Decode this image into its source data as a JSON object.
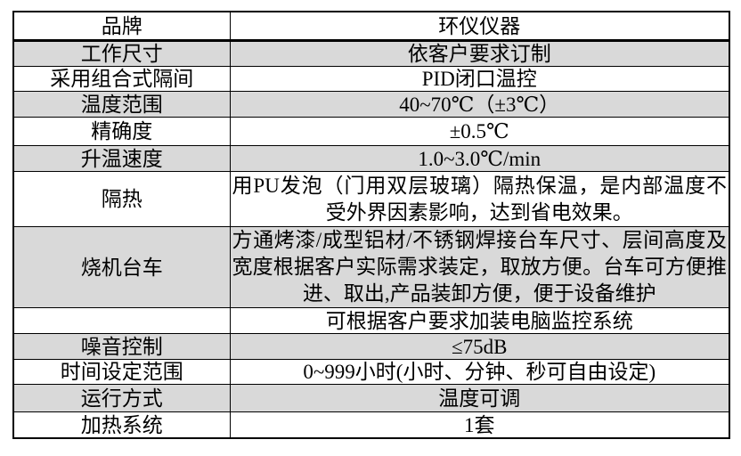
{
  "table": {
    "title": "product-specification-table",
    "colors": {
      "shaded_row_bg": "#d9d9d9",
      "border": "#000000",
      "page_bg": "#ffffff"
    },
    "rows": [
      {
        "label": "品牌",
        "value": "环仪仪器",
        "shaded": false,
        "multiline": false
      },
      {
        "label": "工作尺寸",
        "value": "依客户要求订制",
        "shaded": true,
        "multiline": false
      },
      {
        "label": "采用组合式隔间",
        "value": "PID闭口温控",
        "shaded": false,
        "multiline": false
      },
      {
        "label": "温度范围",
        "value": "40~70℃（±3℃）",
        "shaded": true,
        "multiline": false
      },
      {
        "label": "精确度",
        "value": "±0.5℃",
        "shaded": false,
        "multiline": false
      },
      {
        "label": "升温速度",
        "value": "1.0~3.0℃/min",
        "shaded": true,
        "multiline": false
      },
      {
        "label": "隔热",
        "value": "用PU发泡（门用双层玻璃）隔热保温，是内部温度不受外界因素影响，达到省电效果。",
        "shaded": false,
        "multiline": true
      },
      {
        "label": "烧机台车",
        "value": "方通烤漆/成型铝材/不锈钢焊接台车尺寸、层间高度及宽度根据客户实际需求装定，取放方便。台车可方便推进、取出,产品装卸方便，便于设备维护",
        "shaded": true,
        "multiline": true
      },
      {
        "label": "",
        "value": "可根据客户要求加装电脑监控系统",
        "shaded": false,
        "multiline": false
      },
      {
        "label": "噪音控制",
        "value": "≤75dB",
        "shaded": true,
        "multiline": false
      },
      {
        "label": "时间设定范围",
        "value": "0~999小时(小时、分钟、秒可自由设定)",
        "shaded": false,
        "multiline": false
      },
      {
        "label": "运行方式",
        "value": "温度可调",
        "shaded": true,
        "multiline": false
      },
      {
        "label": "加热系统",
        "value": "1套",
        "shaded": false,
        "multiline": false
      }
    ]
  }
}
